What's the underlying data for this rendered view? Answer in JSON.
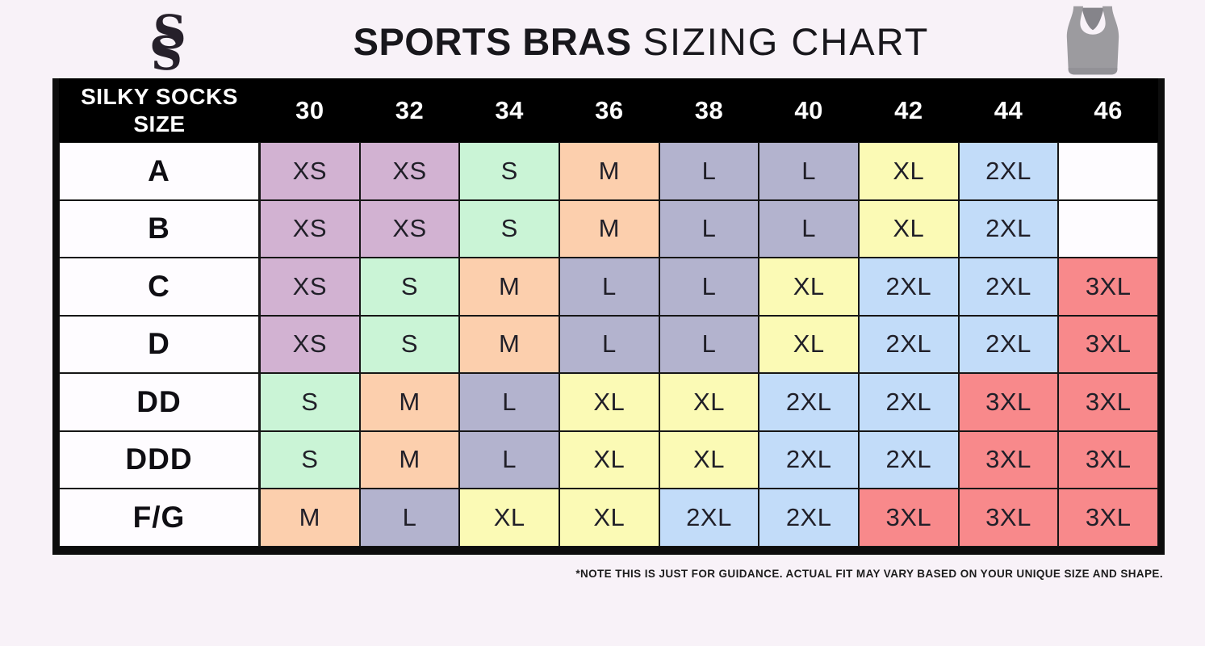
{
  "header": {
    "monogram": "S",
    "title_bold": "SPORTS BRAS",
    "title_regular": "SIZING CHART",
    "logo_icon": "interlocked-s-monogram",
    "bra_icon": "gray-racerback-sports-bra"
  },
  "chart_data": {
    "type": "table",
    "title": "SPORTS BRAS SIZING CHART",
    "corner_header": [
      "SILKY SOCKS",
      "SIZE"
    ],
    "columns": [
      "30",
      "32",
      "34",
      "36",
      "38",
      "40",
      "42",
      "44",
      "46"
    ],
    "rows": [
      {
        "label": "A",
        "cells": [
          "XS",
          "XS",
          "S",
          "M",
          "L",
          "L",
          "XL",
          "2XL",
          ""
        ]
      },
      {
        "label": "B",
        "cells": [
          "XS",
          "XS",
          "S",
          "M",
          "L",
          "L",
          "XL",
          "2XL",
          ""
        ]
      },
      {
        "label": "C",
        "cells": [
          "XS",
          "S",
          "M",
          "L",
          "L",
          "XL",
          "2XL",
          "2XL",
          "3XL"
        ]
      },
      {
        "label": "D",
        "cells": [
          "XS",
          "S",
          "M",
          "L",
          "L",
          "XL",
          "2XL",
          "2XL",
          "3XL"
        ]
      },
      {
        "label": "DD",
        "cells": [
          "S",
          "M",
          "L",
          "XL",
          "XL",
          "2XL",
          "2XL",
          "3XL",
          "3XL"
        ]
      },
      {
        "label": "DDD",
        "cells": [
          "S",
          "M",
          "L",
          "XL",
          "XL",
          "2XL",
          "2XL",
          "3XL",
          "3XL"
        ]
      },
      {
        "label": "F/G",
        "cells": [
          "M",
          "L",
          "XL",
          "XL",
          "2XL",
          "2XL",
          "3XL",
          "3XL",
          "3XL"
        ]
      }
    ],
    "size_colors": {
      "XS": "#d2b2d2",
      "S": "#caf4d6",
      "M": "#fccfad",
      "L": "#b3b3ce",
      "XL": "#fbfab5",
      "2XL": "#c2dcf9",
      "3XL": "#f8898b",
      "": "#fefcff"
    },
    "layout": {
      "header_bg": "#000000",
      "header_text": "#ffffff",
      "page_bg": "#f8f2f8",
      "border": "#0d0d0d"
    }
  },
  "footer": {
    "note": "*NOTE THIS IS JUST FOR GUIDANCE. ACTUAL FIT MAY VARY BASED ON YOUR UNIQUE SIZE AND SHAPE."
  }
}
